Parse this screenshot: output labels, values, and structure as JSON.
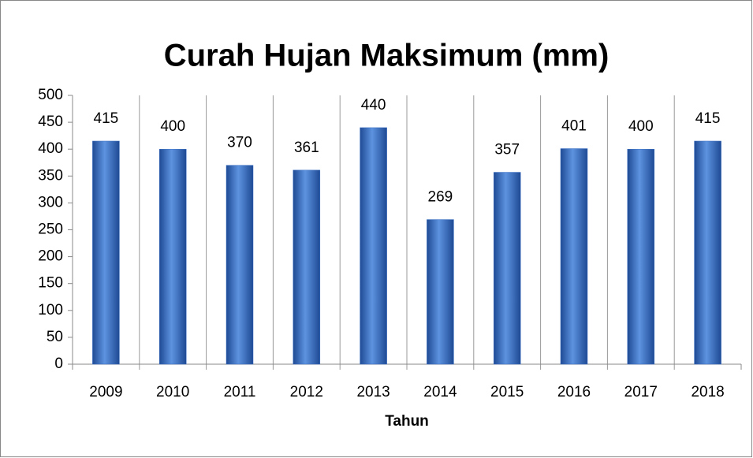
{
  "chart_data": {
    "type": "bar",
    "title": "Curah Hujan Maksimum (mm)",
    "x_label": "Tahun",
    "categories": [
      "2009",
      "2010",
      "2011",
      "2012",
      "2013",
      "2014",
      "2015",
      "2016",
      "2017",
      "2018"
    ],
    "values": [
      415,
      400,
      370,
      361,
      440,
      269,
      357,
      401,
      400,
      415
    ],
    "color": "#3a6fc4",
    "ylim": [
      0,
      500
    ],
    "yticks": [
      0,
      50,
      100,
      150,
      200,
      250,
      300,
      350,
      400,
      450,
      500
    ]
  }
}
